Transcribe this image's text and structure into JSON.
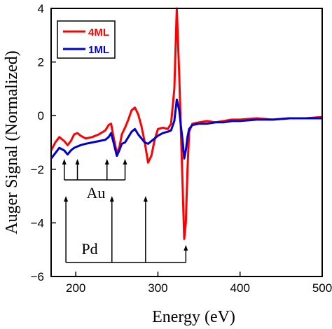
{
  "chart_data": {
    "type": "line",
    "title": "",
    "xlabel": "Energy (eV)",
    "ylabel": "Auger Signal (Normalized)",
    "xlim": [
      170,
      500
    ],
    "ylim": [
      -6,
      4
    ],
    "xticks": [
      200,
      300,
      400,
      500
    ],
    "yticks": [
      -6,
      -4,
      -2,
      0,
      2,
      4
    ],
    "grid": false,
    "legend_position": "top-left",
    "series": [
      {
        "name": "4ML",
        "color": "#ff0000",
        "x": [
          170,
          175,
          180,
          186,
          190,
          194,
          198,
          202,
          206,
          212,
          220,
          228,
          236,
          240,
          243,
          246,
          250,
          253,
          256,
          260,
          264,
          268,
          272,
          276,
          280,
          284,
          288,
          292,
          296,
          300,
          306,
          312,
          316,
          320,
          323,
          326,
          328,
          330,
          332,
          334,
          336,
          338,
          342,
          350,
          360,
          370,
          380,
          390,
          400,
          420,
          440,
          460,
          480,
          500
        ],
        "y": [
          -1.3,
          -1.0,
          -0.8,
          -0.95,
          -1.1,
          -0.95,
          -0.7,
          -0.65,
          -0.75,
          -0.85,
          -0.8,
          -0.7,
          -0.55,
          -0.35,
          -0.3,
          -0.8,
          -1.4,
          -1.2,
          -0.7,
          -0.45,
          -0.15,
          0.2,
          0.3,
          0.05,
          -0.4,
          -1.0,
          -1.75,
          -1.5,
          -0.9,
          -0.5,
          -0.45,
          -0.5,
          -0.3,
          1.0,
          4.0,
          1.5,
          -0.6,
          -2.5,
          -4.6,
          -4.0,
          -2.0,
          -0.6,
          -0.3,
          -0.25,
          -0.2,
          -0.25,
          -0.2,
          -0.15,
          -0.15,
          -0.1,
          -0.15,
          -0.1,
          -0.1,
          -0.05
        ]
      },
      {
        "name": "1ML",
        "color": "#0000cc",
        "x": [
          170,
          175,
          180,
          186,
          190,
          194,
          198,
          202,
          206,
          212,
          220,
          228,
          236,
          240,
          243,
          246,
          250,
          253,
          256,
          260,
          264,
          268,
          272,
          276,
          280,
          284,
          288,
          292,
          296,
          300,
          306,
          312,
          316,
          320,
          323,
          326,
          328,
          330,
          332,
          334,
          336,
          338,
          342,
          350,
          360,
          370,
          380,
          390,
          400,
          420,
          440,
          460,
          480,
          500
        ],
        "y": [
          -1.6,
          -1.4,
          -1.2,
          -1.3,
          -1.45,
          -1.3,
          -1.2,
          -1.15,
          -1.1,
          -1.05,
          -1.0,
          -0.95,
          -0.9,
          -0.8,
          -0.65,
          -1.0,
          -1.5,
          -1.3,
          -1.05,
          -1.0,
          -0.8,
          -0.6,
          -0.5,
          -0.7,
          -0.85,
          -1.0,
          -1.05,
          -0.95,
          -0.85,
          -0.75,
          -0.65,
          -0.6,
          -0.55,
          -0.2,
          0.6,
          0.2,
          -0.4,
          -0.9,
          -1.6,
          -1.3,
          -0.8,
          -0.5,
          -0.35,
          -0.3,
          -0.3,
          -0.25,
          -0.25,
          -0.2,
          -0.2,
          -0.15,
          -0.15,
          -0.1,
          -0.1,
          -0.1
        ]
      }
    ],
    "annotations": [
      {
        "label": "Au",
        "arrows_x": [
          186,
          202,
          238,
          260
        ]
      },
      {
        "label": "Pd",
        "arrows_x": [
          188,
          244,
          285,
          334
        ]
      }
    ]
  }
}
